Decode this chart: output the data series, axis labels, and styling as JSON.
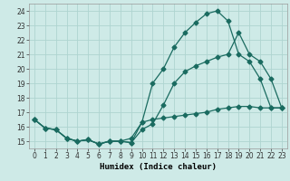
{
  "xlabel": "Humidex (Indice chaleur)",
  "bg_color": "#ceeae7",
  "grid_color": "#aed4d0",
  "line_color": "#1a6b60",
  "xlim": [
    -0.5,
    23.5
  ],
  "ylim": [
    14.5,
    24.5
  ],
  "xticks": [
    0,
    1,
    2,
    3,
    4,
    5,
    6,
    7,
    8,
    9,
    10,
    11,
    12,
    13,
    14,
    15,
    16,
    17,
    18,
    19,
    20,
    21,
    22,
    23
  ],
  "yticks": [
    15,
    16,
    17,
    18,
    19,
    20,
    21,
    22,
    23,
    24
  ],
  "line1_x": [
    0,
    1,
    2,
    3,
    4,
    5,
    6,
    7,
    8,
    9,
    10,
    11,
    12,
    13,
    14,
    15,
    16,
    17,
    18,
    19,
    20,
    21,
    22,
    23
  ],
  "line1_y": [
    16.5,
    15.9,
    15.8,
    15.2,
    15.0,
    15.1,
    14.8,
    15.0,
    15.0,
    14.9,
    16.3,
    19.0,
    20.0,
    21.5,
    22.5,
    23.2,
    23.8,
    24.0,
    23.3,
    21.0,
    20.5,
    19.3,
    17.3,
    17.3
  ],
  "line2_x": [
    0,
    1,
    2,
    3,
    4,
    5,
    6,
    7,
    8,
    9,
    10,
    11,
    12,
    13,
    14,
    15,
    16,
    17,
    18,
    19,
    20,
    21,
    22,
    23
  ],
  "line2_y": [
    16.5,
    15.9,
    15.8,
    15.2,
    15.0,
    15.1,
    14.8,
    15.0,
    15.0,
    14.9,
    15.8,
    16.2,
    17.5,
    19.0,
    19.8,
    20.2,
    20.5,
    20.8,
    21.0,
    22.5,
    21.0,
    20.5,
    19.3,
    17.3
  ],
  "line3_x": [
    0,
    1,
    2,
    3,
    4,
    5,
    6,
    7,
    8,
    9,
    10,
    11,
    12,
    13,
    14,
    15,
    16,
    17,
    18,
    19,
    20,
    21,
    22,
    23
  ],
  "line3_y": [
    16.5,
    15.9,
    15.8,
    15.2,
    15.0,
    15.1,
    14.8,
    15.0,
    15.0,
    15.2,
    16.3,
    16.5,
    16.6,
    16.7,
    16.8,
    16.9,
    17.0,
    17.2,
    17.3,
    17.4,
    17.4,
    17.3,
    17.3,
    17.3
  ],
  "xlabel_fontsize": 6.5,
  "tick_fontsize": 5.5
}
